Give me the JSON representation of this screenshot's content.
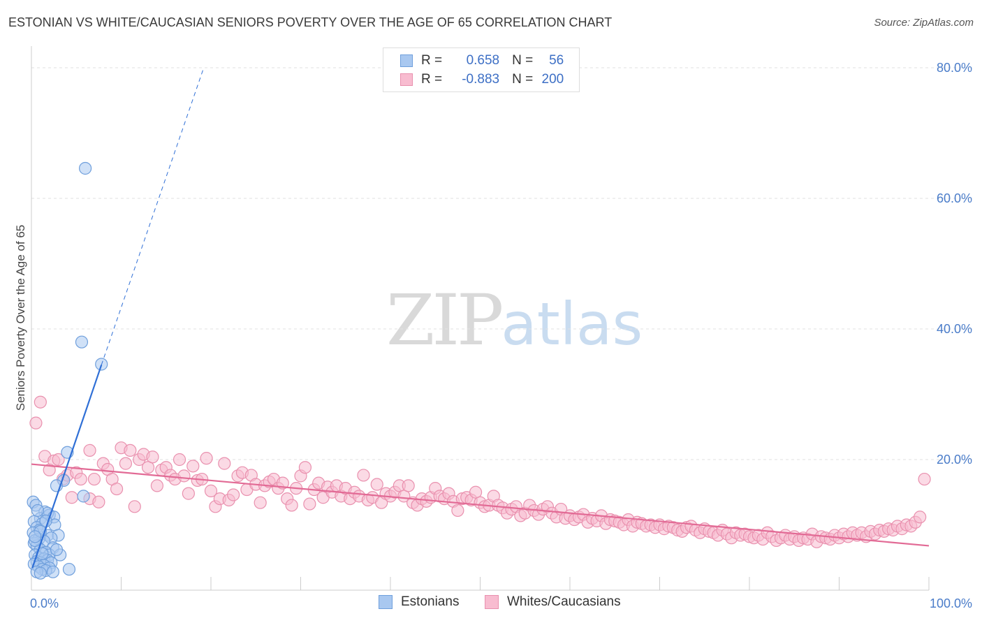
{
  "header": {
    "title": "ESTONIAN VS WHITE/CAUCASIAN SENIORS POVERTY OVER THE AGE OF 65 CORRELATION CHART",
    "source": "Source: ZipAtlas.com"
  },
  "watermark": {
    "zip": "ZIP",
    "atlas": "atlas"
  },
  "legend": {
    "rows": [
      {
        "r_label": "R =",
        "r_value": "0.658",
        "n_label": "N =",
        "n_value": "56",
        "color": "#a9c8f0",
        "border": "#6f9fdc"
      },
      {
        "r_label": "R =",
        "r_value": "-0.883",
        "n_label": "N =",
        "n_value": "200",
        "color": "#f8bcd0",
        "border": "#e990ae"
      }
    ]
  },
  "bottom_legend": {
    "estonians": "Estonians",
    "whites": "Whites/Caucasians"
  },
  "chart_data": {
    "type": "scatter",
    "title": "ESTONIAN VS WHITE/CAUCASIAN SENIORS POVERTY OVER THE AGE OF 65 CORRELATION CHART",
    "xlabel": "",
    "ylabel": "Seniors Poverty Over the Age of 65",
    "xlim": [
      0,
      100
    ],
    "ylim": [
      0,
      82
    ],
    "x_tick_labels": [
      "0.0%",
      "100.0%"
    ],
    "y_ticks": [
      20,
      40,
      60,
      80
    ],
    "y_tick_labels": [
      "20.0%",
      "40.0%",
      "60.0%",
      "80.0%"
    ],
    "grid": true,
    "legend_position": "top-center",
    "series": [
      {
        "name": "Estonians",
        "color": "#6f9fdc",
        "fill": "#a9c8f0",
        "trend": {
          "x": [
            0.1,
            7.8
          ],
          "y": [
            3.4,
            34.5
          ],
          "dash_to": [
            19.2,
            80.0
          ]
        },
        "points": [
          [
            6.0,
            64.6
          ],
          [
            5.6,
            38.0
          ],
          [
            7.8,
            34.6
          ],
          [
            4.0,
            21.1
          ],
          [
            3.6,
            16.8
          ],
          [
            2.8,
            16.0
          ],
          [
            5.8,
            14.4
          ],
          [
            0.2,
            13.5
          ],
          [
            0.5,
            13.0
          ],
          [
            1.5,
            12.0
          ],
          [
            2.0,
            11.5
          ],
          [
            1.0,
            11.0
          ],
          [
            1.8,
            11.8
          ],
          [
            2.5,
            11.2
          ],
          [
            0.3,
            10.5
          ],
          [
            1.2,
            10.2
          ],
          [
            2.6,
            10.0
          ],
          [
            0.6,
            9.6
          ],
          [
            0.9,
            9.2
          ],
          [
            0.2,
            8.8
          ],
          [
            1.8,
            8.4
          ],
          [
            3.0,
            8.4
          ],
          [
            2.2,
            8.0
          ],
          [
            0.8,
            7.8
          ],
          [
            1.4,
            7.5
          ],
          [
            0.3,
            7.2
          ],
          [
            0.6,
            6.8
          ],
          [
            2.4,
            6.5
          ],
          [
            1.0,
            6.2
          ],
          [
            1.6,
            5.8
          ],
          [
            0.4,
            5.4
          ],
          [
            2.0,
            5.4
          ],
          [
            3.2,
            5.4
          ],
          [
            0.8,
            5.0
          ],
          [
            1.4,
            4.8
          ],
          [
            1.8,
            4.6
          ],
          [
            0.6,
            4.4
          ],
          [
            1.0,
            4.2
          ],
          [
            2.2,
            4.2
          ],
          [
            0.3,
            4.0
          ],
          [
            1.4,
            3.8
          ],
          [
            0.8,
            3.6
          ],
          [
            2.0,
            3.4
          ],
          [
            1.2,
            3.2
          ],
          [
            4.2,
            3.2
          ],
          [
            1.6,
            3.0
          ],
          [
            0.6,
            2.8
          ],
          [
            2.4,
            2.8
          ],
          [
            1.0,
            2.6
          ],
          [
            0.4,
            7.6
          ],
          [
            1.0,
            9.0
          ],
          [
            0.7,
            12.2
          ],
          [
            1.6,
            10.6
          ],
          [
            0.4,
            8.2
          ],
          [
            1.2,
            5.6
          ],
          [
            2.8,
            6.2
          ]
        ]
      },
      {
        "name": "Whites/Caucasians",
        "color": "#e990ae",
        "fill": "#f8bcd0",
        "trend": {
          "x": [
            0.0,
            100.0
          ],
          "y": [
            19.3,
            6.8
          ]
        },
        "points": [
          [
            0.5,
            25.6
          ],
          [
            1.0,
            28.8
          ],
          [
            1.5,
            20.5
          ],
          [
            2.5,
            19.8
          ],
          [
            3.0,
            20.0
          ],
          [
            2.0,
            18.4
          ],
          [
            3.5,
            17.0
          ],
          [
            4.0,
            17.6
          ],
          [
            4.5,
            14.2
          ],
          [
            5.0,
            18.0
          ],
          [
            5.5,
            17.0
          ],
          [
            6.5,
            14.0
          ],
          [
            6.5,
            21.4
          ],
          [
            7.0,
            17.0
          ],
          [
            7.5,
            13.5
          ],
          [
            8.0,
            19.4
          ],
          [
            8.5,
            18.5
          ],
          [
            9.0,
            17.0
          ],
          [
            9.5,
            15.5
          ],
          [
            10.0,
            21.8
          ],
          [
            10.5,
            19.4
          ],
          [
            11.0,
            21.4
          ],
          [
            11.5,
            12.8
          ],
          [
            12.0,
            20.0
          ],
          [
            12.5,
            20.8
          ],
          [
            13.0,
            18.8
          ],
          [
            13.5,
            20.4
          ],
          [
            14.0,
            16.0
          ],
          [
            14.5,
            18.4
          ],
          [
            15.0,
            18.8
          ],
          [
            15.5,
            17.6
          ],
          [
            16.0,
            17.0
          ],
          [
            16.5,
            20.0
          ],
          [
            17.0,
            17.5
          ],
          [
            17.5,
            14.8
          ],
          [
            18.0,
            19.0
          ],
          [
            18.5,
            16.8
          ],
          [
            19.0,
            17.0
          ],
          [
            19.5,
            20.2
          ],
          [
            20.0,
            15.2
          ],
          [
            20.5,
            12.8
          ],
          [
            21.0,
            14.0
          ],
          [
            21.5,
            19.4
          ],
          [
            22.0,
            13.8
          ],
          [
            22.5,
            14.6
          ],
          [
            23.0,
            17.5
          ],
          [
            23.5,
            18.0
          ],
          [
            24.0,
            15.4
          ],
          [
            24.5,
            17.6
          ],
          [
            25.0,
            16.2
          ],
          [
            25.5,
            13.4
          ],
          [
            26.0,
            16.0
          ],
          [
            26.5,
            16.6
          ],
          [
            27.0,
            17.0
          ],
          [
            27.5,
            15.6
          ],
          [
            28.0,
            16.4
          ],
          [
            28.5,
            14.0
          ],
          [
            29.0,
            13.0
          ],
          [
            29.5,
            15.6
          ],
          [
            30.0,
            17.5
          ],
          [
            30.5,
            18.8
          ],
          [
            31.0,
            13.2
          ],
          [
            31.5,
            15.4
          ],
          [
            32.0,
            16.4
          ],
          [
            32.5,
            14.2
          ],
          [
            33.0,
            15.8
          ],
          [
            33.5,
            15.0
          ],
          [
            34.0,
            16.0
          ],
          [
            34.5,
            14.4
          ],
          [
            35.0,
            15.6
          ],
          [
            35.5,
            14.0
          ],
          [
            36.0,
            15.0
          ],
          [
            36.5,
            14.4
          ],
          [
            37.0,
            17.6
          ],
          [
            37.5,
            13.8
          ],
          [
            38.0,
            14.2
          ],
          [
            38.5,
            16.2
          ],
          [
            39.0,
            13.4
          ],
          [
            39.5,
            14.8
          ],
          [
            40.0,
            14.4
          ],
          [
            40.5,
            15.0
          ],
          [
            41.0,
            16.0
          ],
          [
            41.5,
            14.4
          ],
          [
            42.0,
            16.0
          ],
          [
            42.5,
            13.4
          ],
          [
            43.0,
            13.0
          ],
          [
            43.5,
            14.0
          ],
          [
            44.0,
            13.6
          ],
          [
            44.5,
            14.2
          ],
          [
            45.0,
            15.6
          ],
          [
            45.5,
            14.4
          ],
          [
            46.0,
            14.0
          ],
          [
            46.5,
            14.8
          ],
          [
            47.0,
            13.6
          ],
          [
            47.5,
            12.2
          ],
          [
            48.0,
            14.0
          ],
          [
            48.5,
            14.2
          ],
          [
            49.0,
            13.8
          ],
          [
            49.5,
            15.0
          ],
          [
            50.0,
            13.4
          ],
          [
            50.5,
            12.8
          ],
          [
            51.0,
            13.0
          ],
          [
            51.5,
            14.4
          ],
          [
            52.0,
            13.0
          ],
          [
            52.5,
            12.6
          ],
          [
            53.0,
            11.8
          ],
          [
            53.5,
            12.4
          ],
          [
            54.0,
            12.8
          ],
          [
            54.5,
            11.4
          ],
          [
            55.0,
            11.8
          ],
          [
            55.5,
            13.0
          ],
          [
            56.0,
            12.2
          ],
          [
            56.5,
            11.6
          ],
          [
            57.0,
            12.4
          ],
          [
            57.5,
            12.8
          ],
          [
            58.0,
            11.8
          ],
          [
            58.5,
            11.2
          ],
          [
            59.0,
            12.4
          ],
          [
            59.5,
            11.0
          ],
          [
            60.0,
            11.4
          ],
          [
            60.5,
            10.8
          ],
          [
            61.0,
            11.2
          ],
          [
            61.5,
            11.6
          ],
          [
            62.0,
            10.4
          ],
          [
            62.5,
            11.0
          ],
          [
            63.0,
            10.6
          ],
          [
            63.5,
            11.4
          ],
          [
            64.0,
            10.2
          ],
          [
            64.5,
            10.8
          ],
          [
            65.0,
            10.6
          ],
          [
            65.5,
            10.4
          ],
          [
            66.0,
            10.0
          ],
          [
            66.5,
            10.8
          ],
          [
            67.0,
            9.8
          ],
          [
            67.5,
            10.4
          ],
          [
            68.0,
            10.2
          ],
          [
            68.5,
            9.8
          ],
          [
            69.0,
            10.0
          ],
          [
            69.5,
            9.6
          ],
          [
            70.0,
            10.0
          ],
          [
            70.5,
            9.4
          ],
          [
            71.0,
            9.8
          ],
          [
            71.5,
            9.6
          ],
          [
            72.0,
            9.2
          ],
          [
            72.5,
            9.0
          ],
          [
            73.0,
            9.6
          ],
          [
            73.5,
            9.8
          ],
          [
            74.0,
            9.2
          ],
          [
            74.5,
            8.8
          ],
          [
            75.0,
            9.4
          ],
          [
            75.5,
            9.0
          ],
          [
            76.0,
            8.8
          ],
          [
            76.5,
            8.4
          ],
          [
            77.0,
            9.2
          ],
          [
            77.5,
            8.6
          ],
          [
            78.0,
            8.0
          ],
          [
            78.5,
            8.8
          ],
          [
            79.0,
            8.4
          ],
          [
            79.5,
            8.6
          ],
          [
            80.0,
            8.2
          ],
          [
            80.5,
            8.0
          ],
          [
            81.0,
            8.4
          ],
          [
            81.5,
            7.8
          ],
          [
            82.0,
            8.8
          ],
          [
            82.5,
            8.2
          ],
          [
            83.0,
            7.6
          ],
          [
            83.5,
            8.0
          ],
          [
            84.0,
            8.4
          ],
          [
            84.5,
            7.8
          ],
          [
            85.0,
            8.2
          ],
          [
            85.5,
            7.6
          ],
          [
            86.0,
            8.0
          ],
          [
            86.5,
            7.8
          ],
          [
            87.0,
            8.6
          ],
          [
            87.5,
            7.4
          ],
          [
            88.0,
            8.2
          ],
          [
            88.5,
            8.0
          ],
          [
            89.0,
            7.8
          ],
          [
            89.5,
            8.4
          ],
          [
            90.0,
            8.0
          ],
          [
            90.5,
            8.6
          ],
          [
            91.0,
            8.2
          ],
          [
            91.5,
            8.8
          ],
          [
            92.0,
            8.4
          ],
          [
            92.5,
            8.8
          ],
          [
            93.0,
            8.2
          ],
          [
            93.5,
            9.0
          ],
          [
            94.0,
            8.6
          ],
          [
            94.5,
            9.2
          ],
          [
            95.0,
            9.0
          ],
          [
            95.5,
            9.4
          ],
          [
            96.0,
            9.2
          ],
          [
            96.5,
            9.8
          ],
          [
            97.0,
            9.4
          ],
          [
            97.5,
            10.0
          ],
          [
            98.0,
            9.8
          ],
          [
            98.5,
            10.4
          ],
          [
            99.0,
            11.2
          ],
          [
            99.5,
            17.0
          ]
        ]
      }
    ]
  }
}
